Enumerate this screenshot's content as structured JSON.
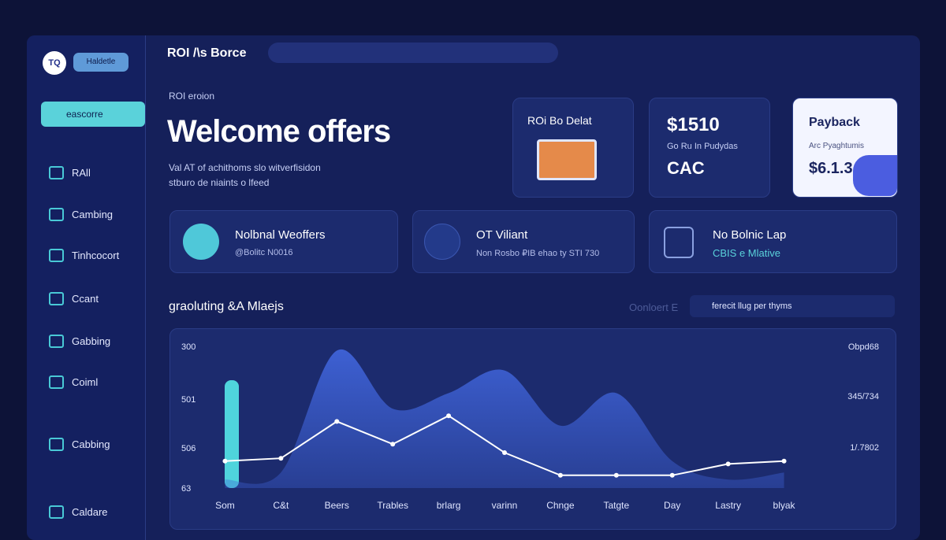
{
  "sidebar": {
    "logo": "TQ",
    "badge": "Haldetle",
    "search": "eascorre",
    "nav": [
      "RAll",
      "Cambing",
      "Tinhcocort",
      "Ccant",
      "Gabbing",
      "Coiml",
      "Cabbing",
      "Caldare"
    ]
  },
  "topbar": {
    "title": "ROI /\\s Borce"
  },
  "hero": {
    "kicker": "ROI eroion",
    "heading": "Welcome offers",
    "description": [
      "Val AT of achithoms slo witverfisidon",
      "stburo de niaints o lfeed"
    ]
  },
  "cards": [
    {
      "title": "ROi Bo Delat"
    },
    {
      "value": "$1510",
      "caption": "Go Ru In Pudydas",
      "label": "CAC"
    },
    {
      "title": "Payback",
      "caption": "Arc Pyaghtumis",
      "value": "$6.1.3"
    }
  ],
  "stats": [
    {
      "title": "Nolbnal Weoffers",
      "subtitle": "@Bolitc N0016"
    },
    {
      "title": "OT Viliant",
      "subtitle": "Non Rosbo ₽IB ehao ty STI 730"
    },
    {
      "title": "No Bolnic Lap",
      "subtitle": "CBIS e Mlative"
    }
  ],
  "section": {
    "title": "graoluting &A Mlaejs",
    "filter_label": "Oonloert E",
    "filter_value": "ferecit llug per thyms"
  },
  "chart_data": {
    "type": "line",
    "categories": [
      "Som",
      "C&t",
      "Beers",
      "Trables",
      "brlarg",
      "varinn",
      "Chnge",
      "Tatgte",
      "Day",
      "Lastry",
      "blyak"
    ],
    "left_labels": [
      "300",
      "501",
      "506",
      "63"
    ],
    "right_labels": [
      "Obpd68",
      "345/734",
      "1/.7802"
    ],
    "ylim": [
      0,
      100
    ],
    "series": [
      {
        "name": "area",
        "color": "#3f63d8",
        "values": [
          6,
          11,
          97,
          56,
          67,
          83,
          44,
          67,
          19,
          6,
          11
        ]
      },
      {
        "name": "line",
        "color": "#ffffff",
        "values": [
          19,
          21,
          47,
          31,
          51,
          25,
          9,
          9,
          9,
          17,
          19
        ]
      }
    ]
  }
}
